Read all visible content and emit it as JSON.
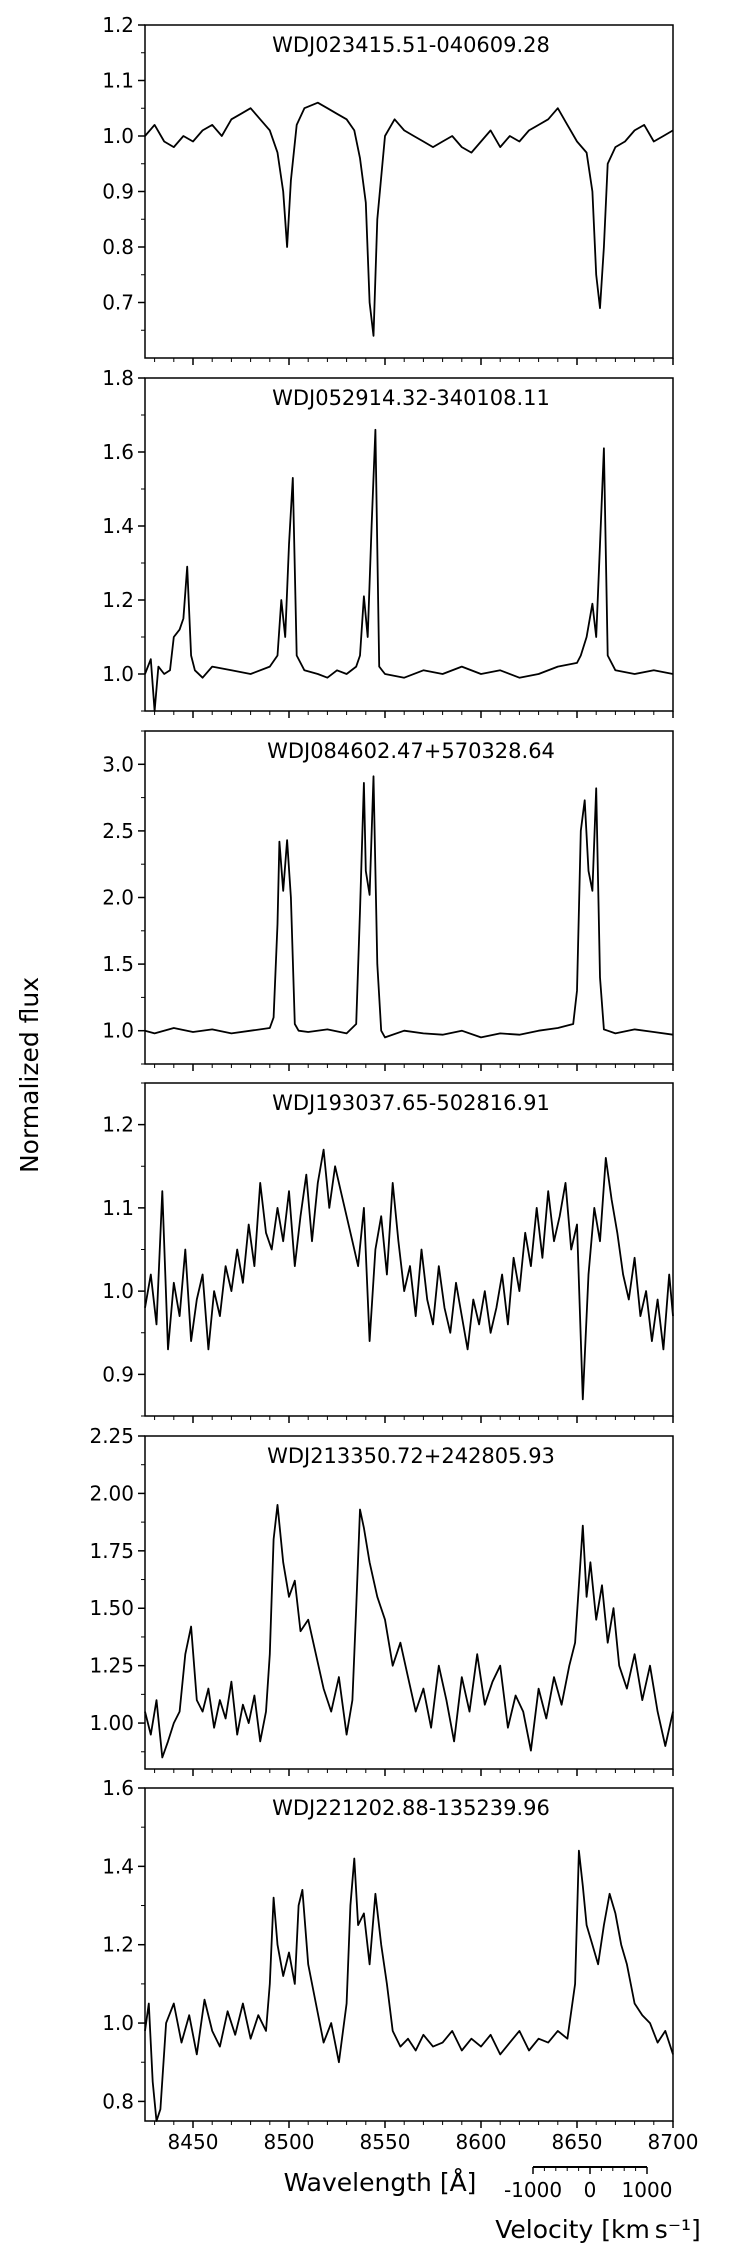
{
  "figure": {
    "ylabel": "Normalized flux",
    "xlabel": "Wavelength [Å]",
    "velocity_label": "Velocity [km s⁻¹]",
    "velocity_ticks": [
      "-1000",
      "0",
      "1000"
    ]
  },
  "chart_data": [
    {
      "type": "line",
      "title": "WDJ023415.51-040609.28",
      "xlim": [
        8425,
        8700
      ],
      "ylim": [
        0.6,
        1.2
      ],
      "yticks": [
        0.7,
        0.8,
        0.9,
        1.0,
        1.1,
        1.2
      ],
      "ytick_labels": [
        "0.7",
        "0.8",
        "0.9",
        "1.0",
        "1.1",
        "1.2"
      ],
      "xticks": [
        8450,
        8500,
        8550,
        8600,
        8650,
        8700
      ],
      "grid": false,
      "series": [
        {
          "x": [
            8425,
            8430,
            8435,
            8440,
            8445,
            8450,
            8455,
            8460,
            8465,
            8470,
            8475,
            8480,
            8485,
            8490,
            8494,
            8497,
            8499,
            8501,
            8504,
            8508,
            8515,
            8520,
            8525,
            8530,
            8534,
            8537,
            8540,
            8542,
            8544,
            8546,
            8550,
            8555,
            8560,
            8565,
            8570,
            8575,
            8580,
            8585,
            8590,
            8595,
            8600,
            8605,
            8610,
            8615,
            8620,
            8625,
            8630,
            8635,
            8640,
            8645,
            8650,
            8655,
            8658,
            8660,
            8662,
            8664,
            8666,
            8670,
            8675,
            8680,
            8685,
            8690,
            8695,
            8700
          ],
          "y": [
            1.0,
            1.02,
            0.99,
            0.98,
            1.0,
            0.99,
            1.01,
            1.02,
            1.0,
            1.03,
            1.04,
            1.05,
            1.03,
            1.01,
            0.97,
            0.9,
            0.8,
            0.92,
            1.02,
            1.05,
            1.06,
            1.05,
            1.04,
            1.03,
            1.01,
            0.96,
            0.88,
            0.7,
            0.64,
            0.85,
            1.0,
            1.03,
            1.01,
            1.0,
            0.99,
            0.98,
            0.99,
            1.0,
            0.98,
            0.97,
            0.99,
            1.01,
            0.98,
            1.0,
            0.99,
            1.01,
            1.02,
            1.03,
            1.05,
            1.02,
            0.99,
            0.97,
            0.9,
            0.75,
            0.69,
            0.8,
            0.95,
            0.98,
            0.99,
            1.01,
            1.02,
            0.99,
            1.0,
            1.01
          ]
        }
      ]
    },
    {
      "type": "line",
      "title": "WDJ052914.32-340108.11",
      "xlim": [
        8425,
        8700
      ],
      "ylim": [
        0.9,
        1.8
      ],
      "yticks": [
        1.0,
        1.2,
        1.4,
        1.6,
        1.8
      ],
      "ytick_labels": [
        "1.0",
        "1.2",
        "1.4",
        "1.6",
        "1.8"
      ],
      "xticks": [
        8450,
        8500,
        8550,
        8600,
        8650,
        8700
      ],
      "grid": false,
      "series": [
        {
          "x": [
            8425,
            8428,
            8430,
            8432,
            8435,
            8438,
            8440,
            8443,
            8445,
            8447,
            8449,
            8451,
            8455,
            8460,
            8470,
            8480,
            8490,
            8494,
            8496,
            8498,
            8500,
            8502,
            8504,
            8508,
            8515,
            8520,
            8525,
            8530,
            8535,
            8537,
            8539,
            8541,
            8543,
            8545,
            8547,
            8550,
            8560,
            8570,
            8580,
            8590,
            8600,
            8610,
            8620,
            8630,
            8640,
            8650,
            8652,
            8655,
            8658,
            8660,
            8662,
            8664,
            8666,
            8670,
            8680,
            8690,
            8700
          ],
          "y": [
            1.0,
            1.04,
            0.9,
            1.02,
            1.0,
            1.01,
            1.1,
            1.12,
            1.15,
            1.29,
            1.05,
            1.01,
            0.99,
            1.02,
            1.01,
            1.0,
            1.02,
            1.05,
            1.2,
            1.1,
            1.35,
            1.53,
            1.05,
            1.01,
            1.0,
            0.99,
            1.01,
            1.0,
            1.02,
            1.05,
            1.21,
            1.1,
            1.4,
            1.66,
            1.02,
            1.0,
            0.99,
            1.01,
            1.0,
            1.02,
            1.0,
            1.01,
            0.99,
            1.0,
            1.02,
            1.03,
            1.05,
            1.1,
            1.19,
            1.1,
            1.35,
            1.61,
            1.05,
            1.01,
            1.0,
            1.01,
            1.0
          ]
        }
      ]
    },
    {
      "type": "line",
      "title": "WDJ084602.47+570328.64",
      "xlim": [
        8425,
        8700
      ],
      "ylim": [
        0.75,
        3.25
      ],
      "yticks": [
        1.0,
        1.5,
        2.0,
        2.5,
        3.0
      ],
      "ytick_labels": [
        "1.0",
        "1.5",
        "2.0",
        "2.5",
        "3.0"
      ],
      "xticks": [
        8450,
        8500,
        8550,
        8600,
        8650,
        8700
      ],
      "grid": false,
      "series": [
        {
          "x": [
            8425,
            8430,
            8440,
            8450,
            8460,
            8470,
            8480,
            8490,
            8492,
            8494,
            8495,
            8497,
            8499,
            8501,
            8503,
            8505,
            8510,
            8520,
            8530,
            8535,
            8537,
            8539,
            8540,
            8542,
            8544,
            8546,
            8548,
            8550,
            8560,
            8570,
            8580,
            8590,
            8600,
            8610,
            8620,
            8630,
            8640,
            8648,
            8650,
            8652,
            8654,
            8656,
            8658,
            8660,
            8662,
            8664,
            8666,
            8670,
            8680,
            8690,
            8700
          ],
          "y": [
            1.0,
            0.98,
            1.02,
            0.99,
            1.01,
            0.98,
            1.0,
            1.02,
            1.1,
            1.8,
            2.42,
            2.05,
            2.43,
            2.0,
            1.05,
            1.0,
            0.99,
            1.01,
            0.98,
            1.05,
            1.9,
            2.86,
            2.2,
            2.02,
            2.91,
            1.5,
            1.0,
            0.95,
            1.0,
            0.98,
            0.97,
            1.0,
            0.95,
            0.98,
            0.97,
            1.0,
            1.02,
            1.05,
            1.3,
            2.5,
            2.73,
            2.2,
            2.05,
            2.82,
            1.4,
            1.01,
            1.0,
            0.98,
            1.01,
            0.99,
            0.97
          ]
        }
      ]
    },
    {
      "type": "line",
      "title": "WDJ193037.65-502816.91",
      "xlim": [
        8425,
        8700
      ],
      "ylim": [
        0.85,
        1.25
      ],
      "yticks": [
        0.9,
        1.0,
        1.1,
        1.2
      ],
      "ytick_labels": [
        "0.9",
        "1.0",
        "1.1",
        "1.2"
      ],
      "xticks": [
        8450,
        8500,
        8550,
        8600,
        8650,
        8700
      ],
      "grid": false,
      "series": [
        {
          "x": [
            8425,
            8428,
            8431,
            8434,
            8437,
            8440,
            8443,
            8446,
            8449,
            8452,
            8455,
            8458,
            8461,
            8464,
            8467,
            8470,
            8473,
            8476,
            8479,
            8482,
            8485,
            8488,
            8491,
            8494,
            8497,
            8500,
            8503,
            8506,
            8509,
            8512,
            8515,
            8518,
            8521,
            8524,
            8527,
            8530,
            8533,
            8536,
            8539,
            8542,
            8545,
            8548,
            8551,
            8554,
            8557,
            8560,
            8563,
            8566,
            8569,
            8572,
            8575,
            8578,
            8581,
            8584,
            8587,
            8590,
            8593,
            8596,
            8599,
            8602,
            8605,
            8608,
            8611,
            8614,
            8617,
            8620,
            8623,
            8626,
            8629,
            8632,
            8635,
            8638,
            8641,
            8644,
            8647,
            8650,
            8653,
            8656,
            8659,
            8662,
            8665,
            8668,
            8671,
            8674,
            8677,
            8680,
            8683,
            8686,
            8689,
            8692,
            8695,
            8698,
            8700
          ],
          "y": [
            0.98,
            1.02,
            0.96,
            1.12,
            0.93,
            1.01,
            0.97,
            1.05,
            0.94,
            0.99,
            1.02,
            0.93,
            1.0,
            0.97,
            1.03,
            1.0,
            1.05,
            1.01,
            1.08,
            1.03,
            1.13,
            1.07,
            1.05,
            1.1,
            1.06,
            1.12,
            1.03,
            1.09,
            1.14,
            1.06,
            1.13,
            1.17,
            1.1,
            1.15,
            1.12,
            1.09,
            1.06,
            1.03,
            1.1,
            0.94,
            1.05,
            1.09,
            1.02,
            1.13,
            1.06,
            1.0,
            1.03,
            0.97,
            1.05,
            0.99,
            0.96,
            1.03,
            0.98,
            0.95,
            1.01,
            0.97,
            0.93,
            0.99,
            0.96,
            1.0,
            0.95,
            0.98,
            1.02,
            0.96,
            1.04,
            1.0,
            1.07,
            1.03,
            1.1,
            1.04,
            1.12,
            1.06,
            1.09,
            1.13,
            1.05,
            1.08,
            0.87,
            1.02,
            1.1,
            1.06,
            1.16,
            1.11,
            1.07,
            1.02,
            0.99,
            1.04,
            0.97,
            1.0,
            0.94,
            0.99,
            0.93,
            1.02,
            0.97
          ]
        }
      ]
    },
    {
      "type": "line",
      "title": "WDJ213350.72+242805.93",
      "xlim": [
        8425,
        8700
      ],
      "ylim": [
        0.8,
        2.25
      ],
      "yticks": [
        1.0,
        1.25,
        1.5,
        1.75,
        2.0,
        2.25
      ],
      "ytick_labels": [
        "1.00",
        "1.25",
        "1.50",
        "1.75",
        "2.00",
        "2.25"
      ],
      "xticks": [
        8450,
        8500,
        8550,
        8600,
        8650,
        8700
      ],
      "grid": false,
      "series": [
        {
          "x": [
            8425,
            8428,
            8431,
            8434,
            8437,
            8440,
            8443,
            8446,
            8449,
            8452,
            8455,
            8458,
            8461,
            8464,
            8467,
            8470,
            8473,
            8476,
            8479,
            8482,
            8485,
            8488,
            8490,
            8492,
            8494,
            8497,
            8500,
            8503,
            8506,
            8510,
            8514,
            8518,
            8522,
            8526,
            8530,
            8533,
            8535,
            8537,
            8539,
            8542,
            8546,
            8550,
            8554,
            8558,
            8562,
            8566,
            8570,
            8574,
            8578,
            8582,
            8586,
            8590,
            8594,
            8598,
            8602,
            8606,
            8610,
            8614,
            8618,
            8622,
            8626,
            8630,
            8634,
            8638,
            8642,
            8646,
            8649,
            8651,
            8653,
            8655,
            8657,
            8660,
            8663,
            8666,
            8669,
            8672,
            8676,
            8680,
            8684,
            8688,
            8692,
            8696,
            8700
          ],
          "y": [
            1.05,
            0.95,
            1.1,
            0.85,
            0.92,
            1.0,
            1.05,
            1.3,
            1.42,
            1.1,
            1.05,
            1.15,
            0.98,
            1.1,
            1.02,
            1.18,
            0.95,
            1.08,
            1.0,
            1.12,
            0.92,
            1.05,
            1.3,
            1.8,
            1.95,
            1.7,
            1.55,
            1.62,
            1.4,
            1.45,
            1.3,
            1.15,
            1.05,
            1.2,
            0.95,
            1.1,
            1.5,
            1.93,
            1.85,
            1.7,
            1.55,
            1.45,
            1.25,
            1.35,
            1.2,
            1.05,
            1.15,
            0.98,
            1.25,
            1.1,
            0.92,
            1.2,
            1.05,
            1.3,
            1.08,
            1.18,
            1.25,
            0.98,
            1.12,
            1.05,
            0.88,
            1.15,
            1.02,
            1.2,
            1.08,
            1.25,
            1.35,
            1.6,
            1.86,
            1.55,
            1.7,
            1.45,
            1.6,
            1.35,
            1.5,
            1.25,
            1.15,
            1.3,
            1.1,
            1.25,
            1.05,
            0.9,
            1.05
          ]
        }
      ]
    },
    {
      "type": "line",
      "title": "WDJ221202.88-135239.96",
      "xlim": [
        8425,
        8700
      ],
      "ylim": [
        0.75,
        1.6
      ],
      "yticks": [
        0.8,
        1.0,
        1.2,
        1.4,
        1.6
      ],
      "ytick_labels": [
        "0.8",
        "1.0",
        "1.2",
        "1.4",
        "1.6"
      ],
      "xticks": [
        8450,
        8500,
        8550,
        8600,
        8650,
        8700
      ],
      "grid": false,
      "series": [
        {
          "x": [
            8425,
            8427,
            8429,
            8431,
            8433,
            8436,
            8440,
            8444,
            8448,
            8452,
            8456,
            8460,
            8464,
            8468,
            8472,
            8476,
            8480,
            8484,
            8488,
            8490,
            8492,
            8494,
            8497,
            8500,
            8503,
            8505,
            8507,
            8510,
            8514,
            8518,
            8522,
            8526,
            8530,
            8532,
            8534,
            8536,
            8539,
            8542,
            8545,
            8548,
            8551,
            8554,
            8558,
            8562,
            8566,
            8570,
            8575,
            8580,
            8585,
            8590,
            8595,
            8600,
            8605,
            8610,
            8615,
            8620,
            8625,
            8630,
            8635,
            8640,
            8645,
            8649,
            8651,
            8653,
            8655,
            8658,
            8661,
            8664,
            8667,
            8670,
            8673,
            8676,
            8680,
            8684,
            8688,
            8692,
            8696,
            8700
          ],
          "y": [
            0.98,
            1.05,
            0.85,
            0.75,
            0.78,
            1.0,
            1.05,
            0.95,
            1.02,
            0.92,
            1.06,
            0.98,
            0.94,
            1.03,
            0.97,
            1.05,
            0.96,
            1.02,
            0.98,
            1.1,
            1.32,
            1.2,
            1.12,
            1.18,
            1.1,
            1.3,
            1.34,
            1.15,
            1.05,
            0.95,
            1.0,
            0.9,
            1.05,
            1.3,
            1.42,
            1.25,
            1.28,
            1.15,
            1.33,
            1.2,
            1.1,
            0.98,
            0.94,
            0.96,
            0.93,
            0.97,
            0.94,
            0.95,
            0.98,
            0.93,
            0.96,
            0.94,
            0.97,
            0.92,
            0.95,
            0.98,
            0.93,
            0.96,
            0.95,
            0.98,
            0.96,
            1.1,
            1.44,
            1.35,
            1.25,
            1.2,
            1.15,
            1.25,
            1.33,
            1.28,
            1.2,
            1.15,
            1.05,
            1.02,
            1.0,
            0.95,
            0.98,
            0.92
          ]
        }
      ]
    }
  ]
}
